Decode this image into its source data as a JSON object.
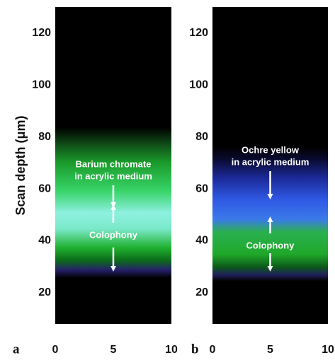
{
  "chart_data": [
    {
      "type": "heatmap",
      "panel_label": "a",
      "ylabel": "Scan depth (μm)",
      "xlim": [
        0,
        10
      ],
      "xticks": [
        0,
        5,
        10
      ],
      "ylim": [
        8,
        130
      ],
      "yticks": [
        20,
        40,
        60,
        80,
        100,
        120
      ],
      "annotations": [
        "Barium chromate",
        "in acrylic medium",
        "Colophony"
      ]
    },
    {
      "type": "heatmap",
      "panel_label": "b",
      "xlim": [
        0,
        10
      ],
      "xticks": [
        0,
        5,
        10
      ],
      "ylim": [
        8,
        130
      ],
      "yticks": [
        20,
        40,
        60,
        80,
        100,
        120
      ],
      "annotations": [
        "Ochre yellow",
        "in acrylic medium",
        "Colophony"
      ]
    }
  ]
}
